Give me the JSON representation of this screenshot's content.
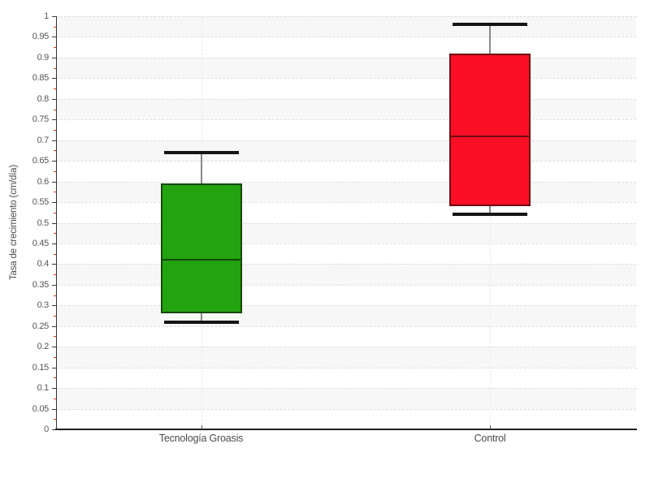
{
  "chart": {
    "y_axis_title": "Tasa de crecimiento (cm/día)"
  },
  "chart_data": {
    "type": "boxplot",
    "title": "",
    "xlabel": "",
    "ylabel": "Tasa de crecimiento (cm/día)",
    "ylim": [
      0,
      1
    ],
    "y_major_step": 0.05,
    "y_minor_step": 0.025,
    "grid": true,
    "legend": "none",
    "y_tick_labels": [
      "0",
      "0.05",
      "0.1",
      "0.15",
      "0.2",
      "0.25",
      "0.3",
      "0.35",
      "0.4",
      "0.45",
      "0.5",
      "0.55",
      "0.6",
      "0.65",
      "0.7",
      "0.75",
      "0.8",
      "0.85",
      "0.9",
      "0.95",
      "1"
    ],
    "categories": [
      "Tecnología Groasis",
      "Control"
    ],
    "series": [
      {
        "name": "Tecnología Groasis",
        "slug": "tecnologia-groasis",
        "low": 0.26,
        "q1": 0.28,
        "median": 0.41,
        "q3": 0.595,
        "high": 0.67,
        "fill": "#23a30f",
        "stroke": "#16470a"
      },
      {
        "name": "Control",
        "slug": "control",
        "low": 0.52,
        "q1": 0.54,
        "median": 0.71,
        "q3": 0.91,
        "high": 0.98,
        "fill": "#fb0f26",
        "stroke": "#6e0a14"
      }
    ],
    "colors": {
      "band": "#f7f7f7",
      "grid": "#dedede",
      "axis": "#333333",
      "major_tick": "#3a3a3a",
      "minor_tick": "#e63312",
      "tick_label": "#55565a",
      "whisker_cap": "#141414",
      "whisker_stem": "#888888"
    }
  }
}
